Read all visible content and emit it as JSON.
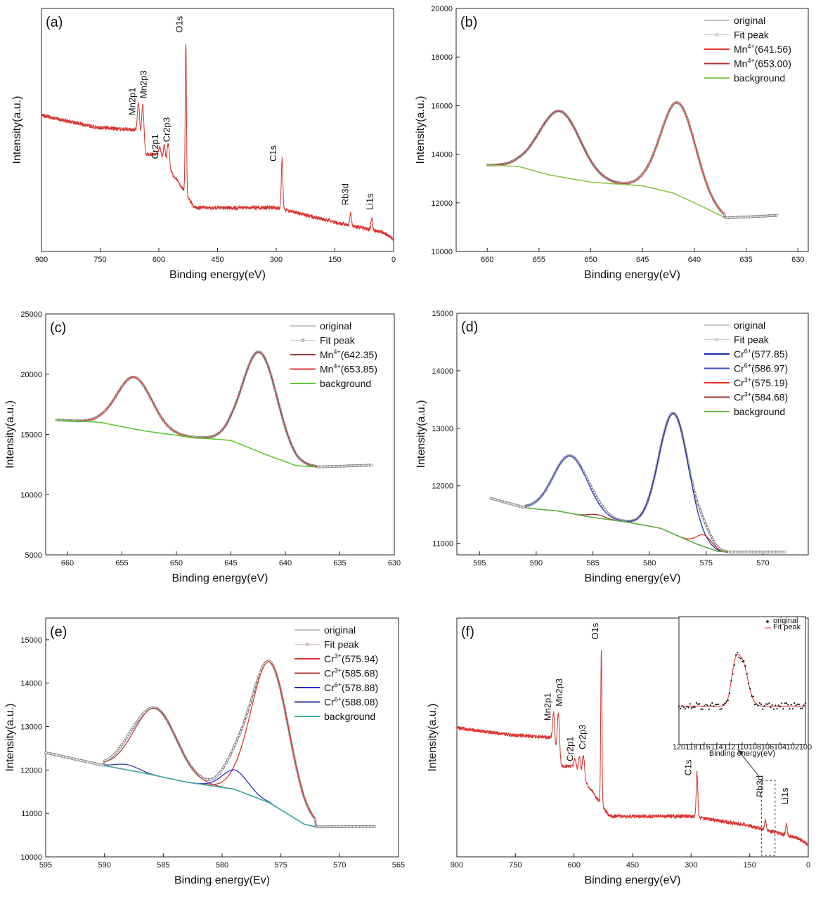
{
  "chart_data": [
    {
      "panel": "(a)",
      "type": "line",
      "title": "",
      "xlabel": "Binding energy(eV)",
      "ylabel": "Intensity(a.u.)",
      "xlim": [
        900,
        0
      ],
      "xticks": [
        900,
        750,
        600,
        450,
        300,
        150,
        0
      ],
      "ylim": [
        0,
        100
      ],
      "yticks_hidden": true,
      "series": [
        {
          "name": "survey",
          "color": "#d9322e",
          "peaks": [
            {
              "x": 652,
              "h": 15,
              "w": 3
            },
            {
              "x": 641,
              "h": 20,
              "w": 3
            },
            {
              "x": 597,
              "h": 4,
              "w": 2.5
            },
            {
              "x": 586,
              "h": 7,
              "w": 2.5
            },
            {
              "x": 576,
              "h": 10,
              "w": 3
            },
            {
              "x": 531,
              "h": 62,
              "w": 1.6
            },
            {
              "x": 285,
              "h": 21,
              "w": 2
            },
            {
              "x": 110,
              "h": 5,
              "w": 2
            },
            {
              "x": 56,
              "h": 5,
              "w": 2
            }
          ],
          "baseline": [
            [
              900,
              56
            ],
            [
              760,
              51
            ],
            [
              660,
              50
            ],
            [
              640,
              40
            ],
            [
              600,
              40
            ],
            [
              531,
              24
            ],
            [
              510,
              18
            ],
            [
              300,
              18
            ],
            [
              150,
              12
            ],
            [
              30,
              8
            ],
            [
              0,
              5
            ]
          ]
        }
      ],
      "annotations": [
        {
          "text": "Mn2p1",
          "x": 660,
          "y": 56
        },
        {
          "text": "Mn2p3",
          "x": 631,
          "y": 63
        },
        {
          "text": "Cr2p1",
          "x": 602,
          "y": 38
        },
        {
          "text": "Cr2p3",
          "x": 572,
          "y": 45
        },
        {
          "text": "O1s",
          "x": 540,
          "y": 90
        },
        {
          "text": "C1s",
          "x": 300,
          "y": 37
        },
        {
          "text": "Rb3d",
          "x": 116,
          "y": 19
        },
        {
          "text": "Li1s",
          "x": 53,
          "y": 17
        }
      ]
    },
    {
      "panel": "(b)",
      "type": "line",
      "xlabel": "Binding energy(eV)",
      "ylabel": "Intensity(a.u.)",
      "xlim": [
        663,
        629
      ],
      "xticks": [
        660,
        655,
        650,
        645,
        640,
        635,
        630
      ],
      "ylim": [
        10000,
        20000
      ],
      "yticks": [
        10000,
        12000,
        14000,
        16000,
        18000,
        20000
      ],
      "legend_location": "top-right",
      "series": [
        {
          "name": "original",
          "color": "#888888",
          "style": "line"
        },
        {
          "name": "Fit peak",
          "color": "#9a9a9a",
          "style": "markers"
        },
        {
          "name": "Mn4+(641.56)",
          "color": "#e83c30",
          "center": 641.56,
          "height": 3800,
          "sigma": 1.7
        },
        {
          "name": "Mn4+(653.00)",
          "color": "#b03030",
          "center": 653.0,
          "height": 2700,
          "sigma": 2.0
        },
        {
          "name": "background",
          "color": "#8ac84a",
          "points": [
            [
              660,
              13550
            ],
            [
              657,
              13500
            ],
            [
              654,
              13150
            ],
            [
              650,
              12850
            ],
            [
              645,
              12700
            ],
            [
              642,
              12400
            ],
            [
              639,
              11800
            ],
            [
              637,
              11380
            ]
          ]
        }
      ],
      "tail_points": [
        [
          637,
          11380
        ],
        [
          632,
          11480
        ]
      ]
    },
    {
      "panel": "(c)",
      "type": "line",
      "xlabel": "Binding energy(eV)",
      "ylabel": "Intensity(a.u.)",
      "xlim": [
        662,
        630
      ],
      "xticks": [
        660,
        655,
        650,
        645,
        640,
        635,
        630
      ],
      "ylim": [
        5000,
        25000
      ],
      "yticks": [
        5000,
        10000,
        15000,
        20000,
        25000
      ],
      "legend_location": "top-right",
      "series": [
        {
          "name": "original",
          "color": "#888888",
          "style": "line"
        },
        {
          "name": "Fit peak",
          "color": "#707070",
          "style": "markers"
        },
        {
          "name": "Mn4+(642.35)",
          "color": "#a0403c",
          "center": 642.35,
          "height": 8300,
          "sigma": 1.6
        },
        {
          "name": "Mn4+(653.85)",
          "color": "#e03b30",
          "center": 653.85,
          "height": 4300,
          "sigma": 1.6
        },
        {
          "name": "background",
          "color": "#55d030",
          "points": [
            [
              661,
              16200
            ],
            [
              657,
              16000
            ],
            [
              653,
              15300
            ],
            [
              649,
              14800
            ],
            [
              645,
              14500
            ],
            [
              642,
              13400
            ],
            [
              639,
              12400
            ],
            [
              637,
              12300
            ]
          ]
        }
      ],
      "tail_points": [
        [
          661,
          16500
        ],
        [
          637,
          12300
        ],
        [
          632,
          12450
        ]
      ]
    },
    {
      "panel": "(d)",
      "type": "line",
      "xlabel": "Binding energy(eV)",
      "ylabel": "Intensity(a.u.)",
      "xlim": [
        597,
        566
      ],
      "xticks": [
        595,
        590,
        585,
        580,
        575,
        570
      ],
      "ylim": [
        10800,
        15000
      ],
      "yticks": [
        11000,
        12000,
        13000,
        14000,
        15000
      ],
      "legend_location": "top-right",
      "series": [
        {
          "name": "original",
          "color": "#888888",
          "style": "line"
        },
        {
          "name": "Fit peak",
          "color": "#9a9a9a",
          "style": "markers"
        },
        {
          "name": "Cr6+(577.85)",
          "color": "#1f2fb0",
          "center": 577.85,
          "height": 2100,
          "sigma": 1.3
        },
        {
          "name": "Cr6+(586.97)",
          "color": "#3c4ed8",
          "center": 586.97,
          "height": 1000,
          "sigma": 1.5
        },
        {
          "name": "Cr3+(575.19)",
          "color": "#e0332c",
          "center": 575.19,
          "height": 200,
          "sigma": 0.7
        },
        {
          "name": "Cr3+(584.68)",
          "color": "#a02c2c",
          "center": 584.68,
          "height": 60,
          "sigma": 0.7
        },
        {
          "name": "background",
          "color": "#5ab840",
          "points": [
            [
              591,
              11620
            ],
            [
              588,
              11560
            ],
            [
              585,
              11450
            ],
            [
              582,
              11370
            ],
            [
              579,
              11260
            ],
            [
              576,
              11000
            ],
            [
              574,
              10860
            ],
            [
              573,
              10850
            ]
          ]
        }
      ],
      "tail_points": [
        [
          594,
          11780
        ],
        [
          591,
          11620
        ],
        [
          573,
          10850
        ],
        [
          568,
          10850
        ]
      ]
    },
    {
      "panel": "(e)",
      "type": "line",
      "xlabel": "Binding energy(Ev)",
      "ylabel": "Intensity(a.u.)",
      "xlim": [
        595,
        565
      ],
      "xticks": [
        595,
        590,
        585,
        580,
        575,
        570,
        565
      ],
      "ylim": [
        10000,
        15500
      ],
      "yticks": [
        10000,
        11000,
        12000,
        13000,
        14000,
        15000
      ],
      "legend_location": "top-right",
      "series": [
        {
          "name": "original",
          "color": "#888888",
          "style": "line"
        },
        {
          "name": "Fit peak",
          "color": "#b070b0",
          "style": "markers"
        },
        {
          "name": "Cr3+(575.94)",
          "color": "#e0352e",
          "center": 575.94,
          "height": 3250,
          "sigma": 1.6
        },
        {
          "name": "Cr3+(585.68)",
          "color": "#b04040",
          "center": 585.68,
          "height": 1550,
          "sigma": 1.8
        },
        {
          "name": "Cr6+(578.88)",
          "color": "#2a2ad0",
          "center": 578.88,
          "height": 450,
          "sigma": 1.1
        },
        {
          "name": "Cr6+(588.08)",
          "color": "#3a3aa0",
          "center": 588.08,
          "height": 120,
          "sigma": 1.0
        },
        {
          "name": "background",
          "color": "#3ab0a0",
          "points": [
            [
              590,
              12100
            ],
            [
              587,
              11950
            ],
            [
              583,
              11720
            ],
            [
              579,
              11560
            ],
            [
              576,
              11250
            ],
            [
              573,
              10750
            ],
            [
              572,
              10690
            ]
          ]
        }
      ],
      "tail_points": [
        [
          595,
          12400
        ],
        [
          590,
          12100
        ],
        [
          572,
          10690
        ],
        [
          567,
          10700
        ]
      ]
    },
    {
      "panel": "(f)",
      "type": "line",
      "xlabel": "Binding energy(eV)",
      "ylabel": "Intensity(a.u.)",
      "xlim": [
        900,
        0
      ],
      "xticks": [
        900,
        750,
        600,
        450,
        300,
        150,
        0
      ],
      "ylim": [
        0,
        100
      ],
      "yticks_hidden": true,
      "series": [
        {
          "name": "survey",
          "color": "#d9322e",
          "peaks": [
            {
              "x": 652,
              "h": 15,
              "w": 3
            },
            {
              "x": 640,
              "h": 22,
              "w": 3
            },
            {
              "x": 597,
              "h": 4,
              "w": 2.5
            },
            {
              "x": 586,
              "h": 7,
              "w": 2.5
            },
            {
              "x": 576,
              "h": 10,
              "w": 3
            },
            {
              "x": 530,
              "h": 64,
              "w": 1.6
            },
            {
              "x": 285,
              "h": 19,
              "w": 2
            },
            {
              "x": 110,
              "h": 4,
              "w": 2
            },
            {
              "x": 56,
              "h": 5,
              "w": 2
            }
          ],
          "baseline": [
            [
              900,
              54
            ],
            [
              760,
              51
            ],
            [
              660,
              50
            ],
            [
              640,
              38
            ],
            [
              600,
              38
            ],
            [
              530,
              22
            ],
            [
              510,
              17
            ],
            [
              300,
              17
            ],
            [
              150,
              13
            ],
            [
              30,
              8
            ],
            [
              0,
              5
            ]
          ]
        }
      ],
      "annotations": [
        {
          "text": "Mn2p1",
          "x": 660,
          "y": 57
        },
        {
          "text": "Mn2p3",
          "x": 630,
          "y": 63
        },
        {
          "text": "Cr2p1",
          "x": 602,
          "y": 40
        },
        {
          "text": "Cr2p3",
          "x": 571,
          "y": 45
        },
        {
          "text": "O1s",
          "x": 538,
          "y": 91
        },
        {
          "text": "C1s",
          "x": 300,
          "y": 34
        },
        {
          "text": "Rb3d",
          "x": 116,
          "y": 25
        },
        {
          "text": "Li1s",
          "x": 52,
          "y": 22
        }
      ],
      "rb_box": [
        120,
        85
      ],
      "inset": {
        "xlabel": "Binding energy(eV)",
        "xlim": [
          120,
          100
        ],
        "xticks": [
          120,
          118,
          116,
          114,
          112,
          110,
          108,
          106,
          104,
          102,
          100
        ],
        "legend": [
          "original",
          "Fit peak"
        ],
        "peak_center": 110,
        "peak_height": 0.62
      }
    }
  ]
}
